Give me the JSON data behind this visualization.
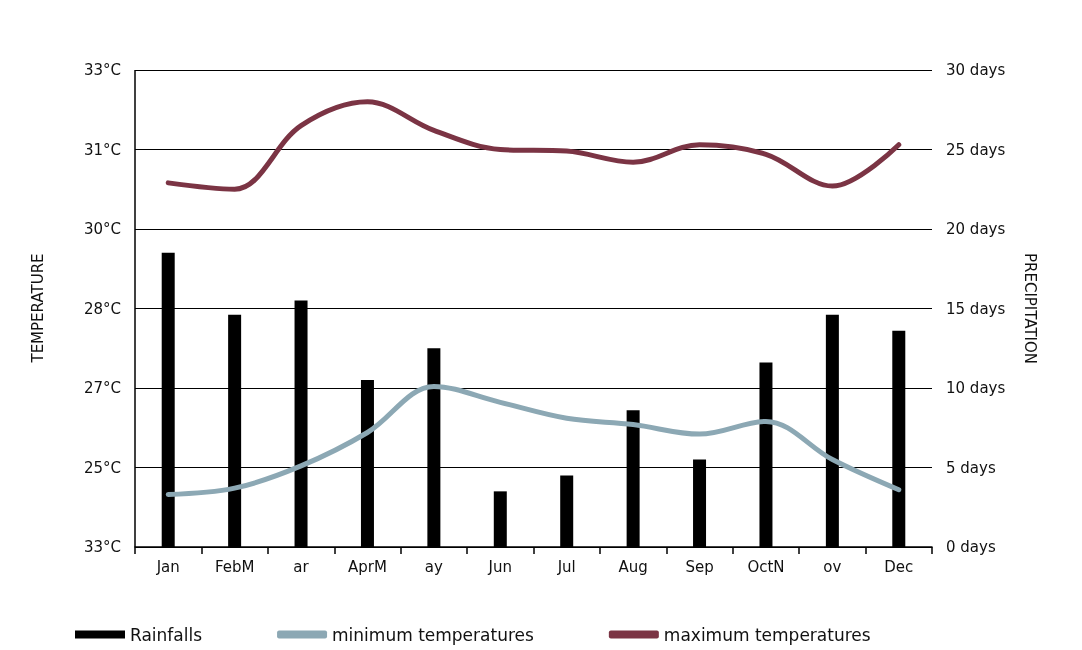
{
  "chart_data": {
    "type": "bar",
    "ylabel": "PRECIPITATION",
    "annotations": [
      "33°C",
      "25°C",
      "27°C",
      "28°C",
      "30°C",
      "31°C",
      "33°C",
      "TEMPERATURE"
    ],
    "categories": [
      "Jan",
      "FebM",
      "ar",
      "AprM",
      "ay",
      "Jun",
      "Jul",
      "Aug",
      "Sep",
      "OctN",
      "ov",
      "Dec"
    ],
    "series": [
      {
        "name": "Rainfalls",
        "color": "#000000",
        "values": [
          18.5,
          14.6,
          15.5,
          10.5,
          12.5,
          3.5,
          4.5,
          8.6,
          5.5,
          11.6,
          14.6,
          13.6
        ]
      },
      {
        "name": "minimum temperatures",
        "type": "line",
        "color": "#8ca8b4",
        "values": [
          3.3,
          3.7,
          5.1,
          7.2,
          10.1,
          9.1,
          8.1,
          7.7,
          7.1,
          7.9,
          5.5,
          3.6
        ]
      },
      {
        "name": "maximum temperatures",
        "type": "line",
        "color": "#7b3444",
        "values": [
          22.9,
          22.5,
          26.5,
          28.0,
          26.2,
          25.0,
          24.9,
          24.2,
          25.3,
          24.7,
          22.7,
          25.3
        ]
      }
    ],
    "ylim": [
      0,
      30
    ],
    "yticks": [
      {
        "value": 0,
        "label": "0 days"
      },
      {
        "value": 5,
        "label": "5 days"
      },
      {
        "value": 10,
        "label": "10 days"
      },
      {
        "value": 15,
        "label": "15 days"
      },
      {
        "value": 20,
        "label": "20 days"
      },
      {
        "value": 25,
        "label": "25 days"
      },
      {
        "value": 30,
        "label": "30 days"
      }
    ],
    "grid": "y",
    "legend": "bottom left",
    "marker": "none",
    "line_style": "solid"
  }
}
